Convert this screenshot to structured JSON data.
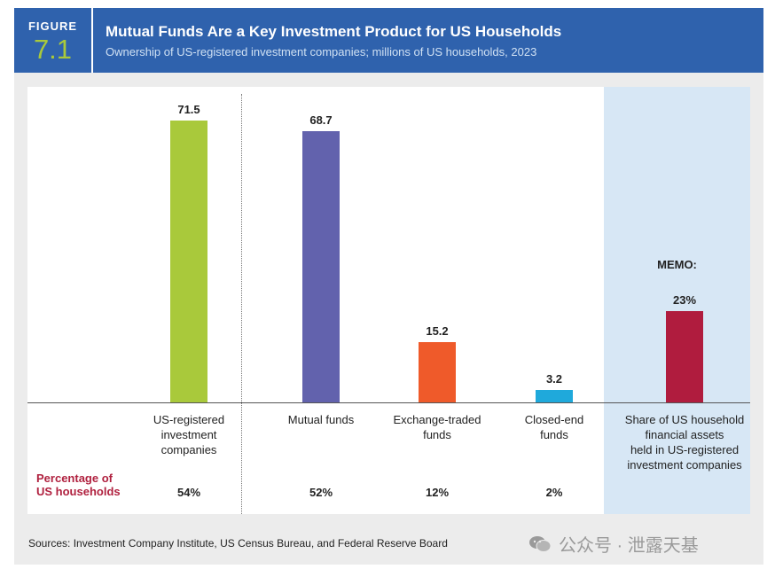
{
  "figure": {
    "label": "FIGURE",
    "number": "7.1",
    "title": "Mutual Funds Are a Key Investment Product for US Households",
    "subtitle": "Ownership of US-registered investment companies; millions of US households, 2023"
  },
  "chart_data": {
    "type": "bar",
    "ylabel": "millions of US households",
    "categories": [
      "US-registered\ninvestment\ncompanies",
      "Mutual funds",
      "Exchange-traded\nfunds",
      "Closed-end\nfunds"
    ],
    "values": [
      71.5,
      68.7,
      15.2,
      3.2
    ],
    "value_labels": [
      "71.5",
      "68.7",
      "15.2",
      "3.2"
    ],
    "colors": [
      "#a9c93b",
      "#6262ad",
      "#ef5a2a",
      "#1fa9db"
    ],
    "percentage_row_label": "Percentage of\nUS households",
    "percentages": [
      "54%",
      "52%",
      "12%",
      "2%"
    ],
    "memo": {
      "heading": "MEMO:",
      "value": 23,
      "value_label": "23%",
      "category": "Share of US household\nfinancial assets\nheld in US-registered\ninvestment companies",
      "color": "#b01c3e"
    }
  },
  "footer": {
    "sources": "Sources: Investment Company Institute, US Census Bureau, and Federal Reserve Board",
    "watermark": "公众号 · 泄露天基"
  }
}
